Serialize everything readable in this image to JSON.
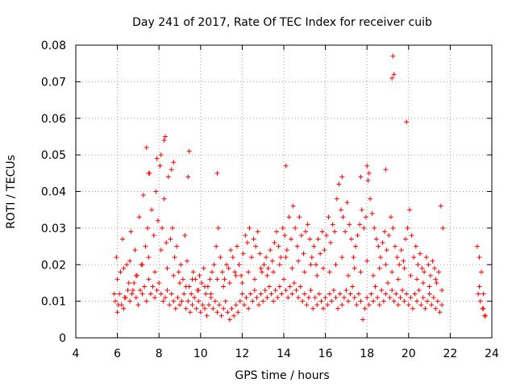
{
  "chart_data": {
    "type": "scatter",
    "title": "Day 241 of 2017, Rate Of TEC Index for receiver cuib",
    "xlabel": "GPS time / hours",
    "ylabel": "ROTI / TECUs",
    "xlim": [
      4,
      24
    ],
    "ylim": [
      0,
      0.08
    ],
    "xticks": [
      4,
      6,
      8,
      10,
      12,
      14,
      16,
      18,
      20,
      22,
      24
    ],
    "yticks": [
      0,
      0.01,
      0.02,
      0.03,
      0.04,
      0.05,
      0.06,
      0.07,
      0.08
    ],
    "xtick_labels": [
      "4",
      "6",
      "8",
      "10",
      "12",
      "14",
      "16",
      "18",
      "20",
      "22",
      "24"
    ],
    "ytick_labels": [
      "0",
      "0.01",
      "0.02",
      "0.03",
      "0.04",
      "0.05",
      "0.06",
      "0.07",
      "0.08"
    ],
    "grid": true,
    "marker": "+",
    "color": "#ff0000",
    "series": [
      {
        "name": "ROTI",
        "x": [
          5.85,
          5.95,
          6.05,
          6.15,
          6.25,
          6.35,
          6.45,
          6.55,
          6.65,
          6.75,
          6.85,
          6.95,
          7.05,
          7.15,
          7.25,
          7.35,
          7.45,
          7.55,
          7.65,
          7.75,
          7.85,
          7.95,
          8.05,
          8.15,
          8.25,
          8.35,
          8.45,
          8.55,
          8.65,
          8.75,
          8.85,
          8.95,
          9.05,
          9.15,
          9.25,
          9.35,
          9.45,
          9.55,
          9.65,
          9.75,
          9.85,
          9.95,
          10.05,
          10.15,
          10.25,
          10.35,
          10.45,
          10.55,
          10.65,
          10.75,
          10.85,
          10.95,
          11.05,
          11.15,
          11.25,
          11.35,
          11.45,
          11.55,
          11.65,
          11.75,
          11.85,
          11.95,
          12.05,
          12.15,
          12.25,
          12.35,
          12.45,
          12.55,
          12.65,
          12.75,
          12.85,
          12.95,
          13.05,
          13.15,
          13.25,
          13.35,
          13.45,
          13.55,
          13.65,
          13.75,
          13.85,
          13.95,
          14.05,
          14.15,
          14.25,
          14.35,
          14.45,
          14.55,
          14.65,
          14.75,
          14.85,
          14.95,
          15.05,
          15.15,
          15.25,
          15.35,
          15.45,
          15.55,
          15.65,
          15.75,
          15.85,
          15.95,
          16.05,
          16.15,
          16.25,
          16.35,
          16.45,
          16.55,
          16.65,
          16.75,
          16.85,
          16.95,
          17.05,
          17.15,
          17.25,
          17.35,
          17.45,
          17.55,
          17.65,
          17.75,
          17.85,
          17.95,
          18.05,
          18.15,
          18.25,
          18.35,
          18.45,
          18.55,
          18.65,
          18.75,
          18.85,
          18.95,
          19.05,
          19.15,
          19.25,
          19.35,
          19.45,
          19.55,
          19.65,
          19.75,
          19.85,
          19.95,
          20.05,
          20.15,
          20.25,
          20.35,
          20.45,
          20.55,
          20.65,
          20.75,
          20.85,
          20.95,
          21.05,
          21.15,
          21.25,
          21.35,
          21.45,
          21.55,
          21.65,
          23.3,
          23.4,
          23.5,
          23.6,
          23.7,
          5.9,
          6.0,
          6.1,
          6.2,
          6.3,
          6.4,
          6.5,
          6.6,
          6.7,
          6.8,
          6.9,
          7.0,
          7.1,
          7.2,
          7.3,
          7.4,
          7.5,
          7.6,
          7.7,
          7.8,
          7.9,
          8.0,
          8.1,
          8.2,
          8.3,
          8.4,
          8.5,
          8.6,
          8.7,
          8.8,
          8.9,
          9.0,
          9.1,
          9.2,
          9.3,
          9.4,
          9.5,
          9.6,
          9.7,
          9.8,
          9.9,
          10.0,
          10.1,
          10.2,
          10.3,
          10.4,
          10.5,
          10.6,
          10.7,
          10.8,
          10.9,
          11.0,
          11.1,
          11.2,
          11.3,
          11.4,
          11.5,
          11.6,
          11.7,
          11.8,
          11.9,
          12.0,
          12.1,
          12.2,
          12.3,
          12.4,
          12.5,
          12.6,
          12.7,
          12.8,
          12.9,
          13.0,
          13.1,
          13.2,
          13.3,
          13.4,
          13.5,
          13.6,
          13.7,
          13.8,
          13.9,
          14.0,
          14.1,
          14.2,
          14.3,
          14.4,
          14.5,
          14.6,
          14.7,
          14.8,
          14.9,
          15.0,
          15.1,
          15.2,
          15.3,
          15.4,
          15.5,
          15.6,
          15.7,
          15.8,
          15.9,
          16.0,
          16.1,
          16.2,
          16.3,
          16.4,
          16.5,
          16.6,
          16.7,
          16.8,
          16.9,
          17.0,
          17.1,
          17.2,
          17.3,
          17.4,
          17.5,
          17.6,
          17.7,
          17.8,
          17.9,
          18.0,
          18.1,
          18.2,
          18.3,
          18.4,
          18.5,
          18.6,
          18.7,
          18.8,
          18.9,
          19.0,
          19.1,
          19.2,
          19.3,
          19.4,
          19.5,
          19.6,
          19.7,
          19.8,
          19.9,
          20.0,
          20.1,
          20.2,
          20.3,
          20.4,
          20.5,
          20.6,
          20.7,
          20.8,
          20.9,
          21.0,
          21.1,
          21.2,
          21.3,
          21.4,
          21.5,
          21.6,
          23.35,
          23.45,
          23.55,
          23.65,
          6.0,
          6.3,
          6.6,
          6.9,
          7.2,
          7.5,
          7.8,
          8.1,
          8.4,
          8.7,
          9.0,
          9.3,
          9.6,
          9.9,
          10.2,
          10.5,
          10.8,
          11.1,
          11.4,
          11.7,
          12.0,
          12.3,
          12.6,
          12.9,
          13.2,
          13.5,
          13.8,
          14.1,
          14.4,
          14.7,
          15.0,
          15.3,
          15.6,
          15.9,
          16.2,
          16.5,
          16.8,
          17.1,
          17.4,
          17.7,
          18.0,
          18.3,
          18.6,
          18.9,
          19.2,
          19.5,
          19.8,
          20.1,
          20.4,
          20.7,
          21.0,
          21.3,
          21.6,
          23.4,
          23.6,
          7.4,
          7.5,
          7.9,
          8.1,
          8.25,
          8.3,
          8.6,
          8.7,
          9.4,
          9.45,
          10.8,
          14.1,
          16.8,
          17.7,
          18.0,
          18.1,
          18.9,
          19.2,
          19.25,
          19.3,
          19.9
        ],
        "y": [
          0.012,
          0.022,
          0.009,
          0.018,
          0.027,
          0.011,
          0.02,
          0.015,
          0.029,
          0.013,
          0.024,
          0.017,
          0.033,
          0.02,
          0.039,
          0.025,
          0.03,
          0.045,
          0.035,
          0.028,
          0.04,
          0.032,
          0.047,
          0.03,
          0.038,
          0.026,
          0.044,
          0.027,
          0.03,
          0.022,
          0.025,
          0.018,
          0.02,
          0.016,
          0.028,
          0.021,
          0.014,
          0.012,
          0.018,
          0.016,
          0.013,
          0.017,
          0.015,
          0.019,
          0.012,
          0.014,
          0.016,
          0.018,
          0.02,
          0.025,
          0.03,
          0.022,
          0.018,
          0.016,
          0.02,
          0.019,
          0.024,
          0.022,
          0.018,
          0.025,
          0.02,
          0.017,
          0.023,
          0.028,
          0.026,
          0.03,
          0.022,
          0.027,
          0.025,
          0.029,
          0.023,
          0.018,
          0.02,
          0.022,
          0.019,
          0.024,
          0.021,
          0.026,
          0.029,
          0.025,
          0.022,
          0.03,
          0.028,
          0.024,
          0.033,
          0.027,
          0.036,
          0.03,
          0.025,
          0.033,
          0.028,
          0.023,
          0.029,
          0.031,
          0.027,
          0.022,
          0.025,
          0.02,
          0.027,
          0.023,
          0.029,
          0.024,
          0.028,
          0.033,
          0.026,
          0.031,
          0.029,
          0.038,
          0.042,
          0.035,
          0.033,
          0.029,
          0.037,
          0.031,
          0.027,
          0.022,
          0.025,
          0.028,
          0.031,
          0.035,
          0.03,
          0.033,
          0.043,
          0.038,
          0.034,
          0.03,
          0.027,
          0.025,
          0.022,
          0.026,
          0.029,
          0.024,
          0.028,
          0.033,
          0.03,
          0.025,
          0.022,
          0.02,
          0.024,
          0.021,
          0.027,
          0.03,
          0.035,
          0.028,
          0.022,
          0.025,
          0.02,
          0.023,
          0.019,
          0.018,
          0.022,
          0.02,
          0.017,
          0.021,
          0.019,
          0.015,
          0.018,
          0.036,
          0.03,
          0.025,
          0.022,
          0.018,
          0.008,
          0.006,
          0.01,
          0.007,
          0.012,
          0.009,
          0.008,
          0.011,
          0.013,
          0.01,
          0.012,
          0.015,
          0.011,
          0.009,
          0.013,
          0.012,
          0.014,
          0.01,
          0.016,
          0.012,
          0.014,
          0.011,
          0.013,
          0.015,
          0.012,
          0.01,
          0.011,
          0.013,
          0.009,
          0.012,
          0.01,
          0.008,
          0.011,
          0.009,
          0.01,
          0.012,
          0.008,
          0.01,
          0.007,
          0.009,
          0.011,
          0.008,
          0.01,
          0.007,
          0.009,
          0.008,
          0.006,
          0.009,
          0.011,
          0.008,
          0.01,
          0.007,
          0.009,
          0.006,
          0.008,
          0.01,
          0.007,
          0.005,
          0.008,
          0.006,
          0.009,
          0.007,
          0.01,
          0.012,
          0.009,
          0.011,
          0.008,
          0.012,
          0.01,
          0.013,
          0.011,
          0.009,
          0.012,
          0.01,
          0.013,
          0.011,
          0.014,
          0.012,
          0.01,
          0.013,
          0.011,
          0.014,
          0.012,
          0.016,
          0.013,
          0.011,
          0.014,
          0.012,
          0.015,
          0.013,
          0.011,
          0.014,
          0.01,
          0.012,
          0.009,
          0.011,
          0.013,
          0.008,
          0.011,
          0.009,
          0.012,
          0.01,
          0.008,
          0.011,
          0.009,
          0.012,
          0.01,
          0.013,
          0.011,
          0.008,
          0.012,
          0.009,
          0.011,
          0.013,
          0.01,
          0.012,
          0.014,
          0.011,
          0.009,
          0.012,
          0.01,
          0.005,
          0.008,
          0.011,
          0.009,
          0.012,
          0.01,
          0.014,
          0.011,
          0.009,
          0.013,
          0.01,
          0.012,
          0.015,
          0.011,
          0.013,
          0.01,
          0.012,
          0.009,
          0.011,
          0.013,
          0.01,
          0.012,
          0.009,
          0.011,
          0.008,
          0.012,
          0.01,
          0.013,
          0.009,
          0.011,
          0.008,
          0.01,
          0.012,
          0.009,
          0.011,
          0.008,
          0.01,
          0.007,
          0.009,
          0.012,
          0.01,
          0.008,
          0.006,
          0.016,
          0.019,
          0.021,
          0.017,
          0.02,
          0.022,
          0.018,
          0.024,
          0.019,
          0.017,
          0.015,
          0.014,
          0.016,
          0.013,
          0.014,
          0.012,
          0.016,
          0.014,
          0.015,
          0.017,
          0.015,
          0.018,
          0.016,
          0.019,
          0.017,
          0.018,
          0.02,
          0.022,
          0.019,
          0.021,
          0.018,
          0.02,
          0.017,
          0.019,
          0.018,
          0.02,
          0.022,
          0.017,
          0.019,
          0.018,
          0.021,
          0.017,
          0.019,
          0.02,
          0.018,
          0.016,
          0.019,
          0.017,
          0.016,
          0.015,
          0.014,
          0.016,
          0.013,
          0.014,
          0.012,
          0.052,
          0.045,
          0.049,
          0.05,
          0.054,
          0.055,
          0.046,
          0.048,
          0.044,
          0.051,
          0.045,
          0.047,
          0.044,
          0.044,
          0.047,
          0.045,
          0.046,
          0.071,
          0.077,
          0.072,
          0.059
        ]
      }
    ]
  }
}
